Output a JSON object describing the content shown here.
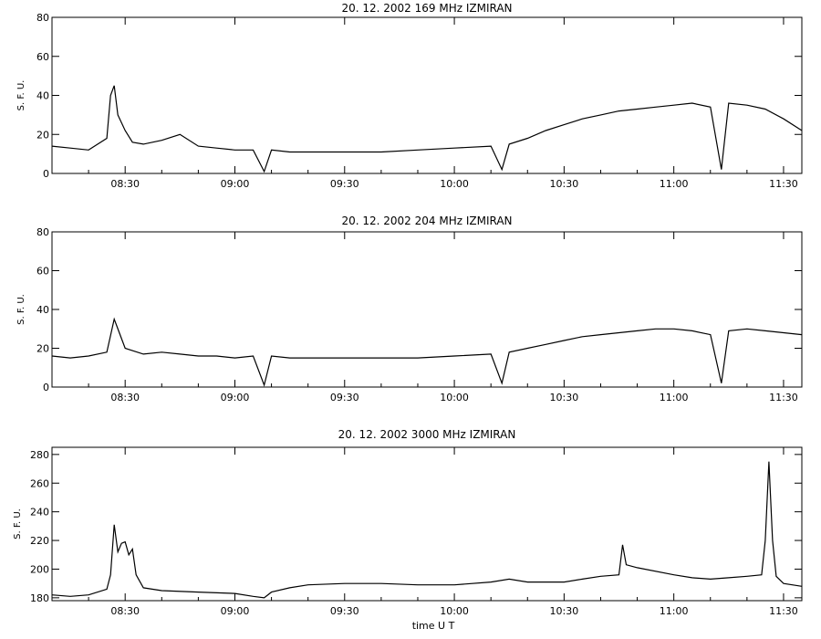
{
  "chart_data": [
    {
      "type": "line",
      "title": "20.  12.  2002    169 MHz     IZMIRAN",
      "ylabel": "S. F. U.",
      "xlabel": "",
      "xlim": [
        "08:10",
        "11:35"
      ],
      "ylim": [
        0,
        80
      ],
      "yticks": [
        0,
        20,
        40,
        60,
        80
      ],
      "xticks": [
        "08:30",
        "09:00",
        "09:30",
        "10:00",
        "10:30",
        "11:00",
        "11:30"
      ],
      "grid": false,
      "series": [
        {
          "x": [
            "08:10",
            "08:15",
            "08:20",
            "08:25",
            "08:26",
            "08:27",
            "08:28",
            "08:30",
            "08:32",
            "08:35",
            "08:40",
            "08:45",
            "08:50",
            "08:55",
            "09:00",
            "09:05",
            "09:08",
            "09:10",
            "09:15",
            "09:20",
            "09:30",
            "09:40",
            "09:50",
            "10:00",
            "10:10",
            "10:13",
            "10:15",
            "10:20",
            "10:25",
            "10:30",
            "10:35",
            "10:40",
            "10:45",
            "10:50",
            "10:55",
            "11:00",
            "11:05",
            "11:10",
            "11:13",
            "11:15",
            "11:20",
            "11:25",
            "11:30",
            "11:35"
          ],
          "values": [
            14,
            13,
            12,
            18,
            40,
            45,
            30,
            22,
            16,
            15,
            17,
            20,
            14,
            13,
            12,
            12,
            1,
            12,
            11,
            11,
            11,
            11,
            12,
            13,
            14,
            2,
            15,
            18,
            22,
            25,
            28,
            30,
            32,
            33,
            34,
            35,
            36,
            34,
            2,
            36,
            35,
            33,
            28,
            22
          ]
        }
      ]
    },
    {
      "type": "line",
      "title": "20.  12.  2002    204 MHz     IZMIRAN",
      "ylabel": "S. F. U.",
      "xlabel": "",
      "xlim": [
        "08:10",
        "11:35"
      ],
      "ylim": [
        0,
        80
      ],
      "yticks": [
        0,
        20,
        40,
        60,
        80
      ],
      "xticks": [
        "08:30",
        "09:00",
        "09:30",
        "10:00",
        "10:30",
        "11:00",
        "11:30"
      ],
      "grid": false,
      "series": [
        {
          "x": [
            "08:10",
            "08:15",
            "08:20",
            "08:25",
            "08:27",
            "08:30",
            "08:35",
            "08:40",
            "08:45",
            "08:50",
            "08:55",
            "09:00",
            "09:05",
            "09:08",
            "09:10",
            "09:15",
            "09:20",
            "09:30",
            "09:40",
            "09:50",
            "10:00",
            "10:10",
            "10:13",
            "10:15",
            "10:20",
            "10:25",
            "10:30",
            "10:35",
            "10:40",
            "10:45",
            "10:50",
            "10:55",
            "11:00",
            "11:05",
            "11:10",
            "11:13",
            "11:15",
            "11:20",
            "11:25",
            "11:30",
            "11:35"
          ],
          "values": [
            16,
            15,
            16,
            18,
            35,
            20,
            17,
            18,
            17,
            16,
            16,
            15,
            16,
            1,
            16,
            15,
            15,
            15,
            15,
            15,
            16,
            17,
            2,
            18,
            20,
            22,
            24,
            26,
            27,
            28,
            29,
            30,
            30,
            29,
            27,
            2,
            29,
            30,
            29,
            28,
            27
          ]
        }
      ]
    },
    {
      "type": "line",
      "title": "20.  12.  2002    3000 MHz     IZMIRAN",
      "ylabel": "S. F. U.",
      "xlabel": "time  U T",
      "xlim": [
        "08:10",
        "11:35"
      ],
      "ylim": [
        178,
        285
      ],
      "yticks": [
        180,
        200,
        220,
        240,
        260,
        280
      ],
      "xticks": [
        "08:30",
        "09:00",
        "09:30",
        "10:00",
        "10:30",
        "11:00",
        "11:30"
      ],
      "grid": false,
      "series": [
        {
          "x": [
            "08:10",
            "08:15",
            "08:20",
            "08:25",
            "08:26",
            "08:27",
            "08:28",
            "08:29",
            "08:30",
            "08:31",
            "08:32",
            "08:33",
            "08:35",
            "08:40",
            "08:50",
            "09:00",
            "09:05",
            "09:08",
            "09:10",
            "09:15",
            "09:20",
            "09:30",
            "09:40",
            "09:50",
            "10:00",
            "10:10",
            "10:15",
            "10:20",
            "10:30",
            "10:35",
            "10:40",
            "10:45",
            "10:46",
            "10:47",
            "10:50",
            "11:00",
            "11:05",
            "11:10",
            "11:15",
            "11:20",
            "11:24",
            "11:25",
            "11:26",
            "11:27",
            "11:28",
            "11:30",
            "11:35"
          ],
          "values": [
            182,
            181,
            182,
            186,
            196,
            231,
            212,
            218,
            219,
            210,
            214,
            196,
            187,
            185,
            184,
            183,
            181,
            180,
            184,
            187,
            189,
            190,
            190,
            189,
            189,
            191,
            193,
            191,
            191,
            193,
            195,
            196,
            217,
            203,
            201,
            196,
            194,
            193,
            194,
            195,
            196,
            220,
            275,
            220,
            195,
            190,
            188
          ]
        }
      ]
    }
  ]
}
